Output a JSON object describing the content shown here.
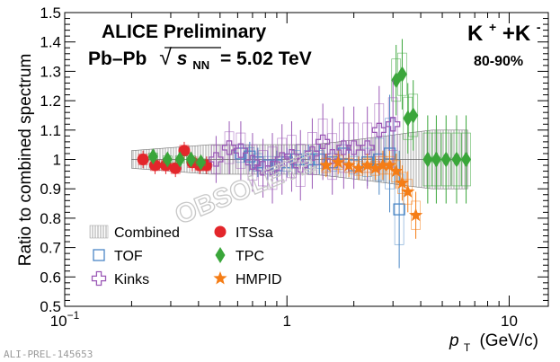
{
  "header": {
    "line1": "ALICE Preliminary",
    "line2_prefix": "Pb–Pb",
    "line2_sqrt": "√",
    "line2_s": "s",
    "line2_sub": "NN",
    "line2_suffix": "= 5.02 TeV",
    "particle_main": "K",
    "particle_sup1": "+",
    "particle_plus": "+K",
    "particle_sup2": "-",
    "centrality": "80-90%"
  },
  "watermark": {
    "stamp": "OBSOLETE",
    "footer": "ALI-PREL-145653"
  },
  "legend": [
    {
      "label": "Combined",
      "marker": "hatched-band",
      "color": "#808080"
    },
    {
      "label": "ITSsa",
      "marker": "circle",
      "color": "#e3262b"
    },
    {
      "label": "TOF",
      "marker": "open-square",
      "color": "#4a86c5"
    },
    {
      "label": "TPC",
      "marker": "diamond",
      "color": "#3aa63a"
    },
    {
      "label": "Kinks",
      "marker": "open-cross",
      "color": "#9b59b6"
    },
    {
      "label": "HMPID",
      "marker": "star",
      "color": "#f57d16"
    }
  ],
  "chart_data": {
    "type": "scatter",
    "ylabel": "Ratio to combined spectrum",
    "xlabel_p": "p",
    "xlabel_sub": "T",
    "xlabel_unit": "(GeV/c)",
    "x_scale": "log",
    "xlim": [
      0.1,
      15
    ],
    "ylim": [
      0.5,
      1.5
    ],
    "x_ticks": [
      {
        "v": 0.1,
        "base": "10",
        "exp": "−1"
      },
      {
        "v": 1,
        "base": "1",
        "exp": ""
      },
      {
        "v": 10,
        "base": "10",
        "exp": ""
      }
    ],
    "y_ticks": [
      0.5,
      0.6,
      0.7,
      0.8,
      0.9,
      1,
      1.1,
      1.2,
      1.3,
      1.4,
      1.5
    ],
    "y_tick_labels": [
      "0.5",
      "0.6",
      "0.7",
      "0.8",
      "0.9",
      "1",
      "1.1",
      "1.2",
      "1.3",
      "1.4",
      "1.5"
    ],
    "grid": false,
    "legend_position": "bottom-left",
    "combined_band": {
      "x": [
        0.2,
        0.3,
        0.45,
        0.6,
        0.8,
        1.0,
        1.3,
        1.7,
        2.2,
        2.8,
        3.5,
        4.5,
        5.5,
        6.5
      ],
      "lo": [
        0.97,
        0.96,
        0.95,
        0.95,
        0.95,
        0.95,
        0.95,
        0.94,
        0.93,
        0.92,
        0.91,
        0.9,
        0.9,
        0.9
      ],
      "hi": [
        1.03,
        1.04,
        1.05,
        1.05,
        1.05,
        1.05,
        1.05,
        1.06,
        1.07,
        1.08,
        1.09,
        1.1,
        1.1,
        1.1
      ]
    },
    "series": [
      {
        "name": "ITSsa",
        "x": [
          0.225,
          0.255,
          0.285,
          0.315,
          0.345,
          0.375,
          0.405,
          0.435
        ],
        "y": [
          1.0,
          0.98,
          0.98,
          0.97,
          1.03,
          0.99,
          0.98,
          0.98
        ],
        "err": [
          0.03,
          0.03,
          0.03,
          0.03,
          0.03,
          0.03,
          0.03,
          0.03
        ]
      },
      {
        "name": "TPC",
        "x": [
          0.25,
          0.29,
          0.33,
          0.37,
          0.41,
          3.1,
          3.3,
          3.5,
          3.7,
          4.3,
          4.7,
          5.2,
          5.8,
          6.4
        ],
        "y": [
          1.01,
          1.0,
          1.0,
          1.0,
          0.99,
          1.27,
          1.29,
          1.14,
          1.15,
          1.0,
          1.0,
          1.0,
          1.0,
          1.0
        ],
        "err": [
          0.02,
          0.02,
          0.02,
          0.02,
          0.02,
          0.12,
          0.12,
          0.12,
          0.12,
          0.15,
          0.15,
          0.15,
          0.15,
          0.15
        ]
      },
      {
        "name": "TOF",
        "x": [
          0.62,
          0.68,
          0.74,
          0.82,
          0.9,
          1.0,
          1.1,
          1.25,
          1.4,
          1.6,
          1.8,
          2.0,
          2.3,
          2.6,
          2.9,
          3.2
        ],
        "y": [
          1.02,
          1.01,
          0.99,
          0.98,
          0.98,
          0.99,
          1.0,
          1.0,
          1.0,
          0.99,
          1.02,
          0.98,
          0.99,
          1.0,
          1.02,
          0.83
        ],
        "err": [
          0.05,
          0.05,
          0.05,
          0.05,
          0.05,
          0.05,
          0.05,
          0.05,
          0.05,
          0.05,
          0.05,
          0.05,
          0.08,
          0.12,
          0.2,
          0.2
        ]
      },
      {
        "name": "Kinks",
        "x": [
          0.48,
          0.55,
          0.62,
          0.7,
          0.78,
          0.86,
          0.95,
          1.05,
          1.15,
          1.3,
          1.45,
          1.6,
          1.8,
          2.0,
          2.3,
          2.6,
          3.0
        ],
        "y": [
          1.0,
          1.04,
          1.03,
          0.99,
          0.97,
          0.97,
          1.0,
          1.01,
          0.98,
          1.02,
          1.06,
          1.01,
          1.04,
          1.04,
          1.04,
          1.1,
          1.12
        ],
        "err": [
          0.08,
          0.09,
          0.1,
          0.1,
          0.1,
          0.12,
          0.12,
          0.12,
          0.12,
          0.12,
          0.13,
          0.13,
          0.14,
          0.14,
          0.14,
          0.15,
          0.15
        ]
      },
      {
        "name": "HMPID",
        "x": [
          1.5,
          1.7,
          1.9,
          2.1,
          2.3,
          2.5,
          2.7,
          2.9,
          3.1,
          3.3,
          3.5,
          3.8
        ],
        "y": [
          0.98,
          0.99,
          0.98,
          0.97,
          0.98,
          0.97,
          0.98,
          0.98,
          0.96,
          0.92,
          0.89,
          0.81
        ],
        "err": [
          0.04,
          0.04,
          0.04,
          0.04,
          0.04,
          0.04,
          0.05,
          0.05,
          0.06,
          0.06,
          0.07,
          0.08
        ]
      }
    ]
  }
}
